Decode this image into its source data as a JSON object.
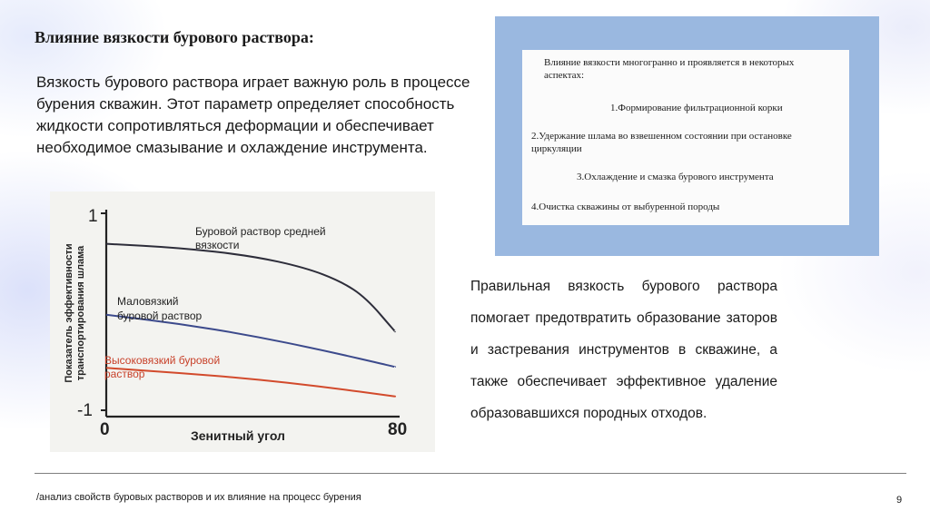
{
  "slide": {
    "title": "Влияние вязкости бурового раствора:",
    "intro": "Вязкость бурового раствора играет важную роль в процессе бурения скважин. Этот параметр определяет способность жидкости сопротивляться деформации и обеспечивает необходимое смазывание и охлаждение инструмента.",
    "paragraph": "Правильная вязкость бурового раствора помогает предотвратить образование заторов и застревания инструментов в скважине, а также обеспечивает эффективное удаление образовавшихся породных отходов.",
    "footer": "/анализ свойств буровых растворов и их влияние на процесс бурения",
    "page_number": "9"
  },
  "aspects": {
    "intro": "Влияние вязкости многогранно и проявляется в некоторых аспектах:",
    "items": [
      "1.Формирование фильтрационной корки",
      "2.Удержание шлама во взвешенном состоянии при остановке циркуляции",
      "3.Охлаждение и смазка бурового инструмента",
      "4.Очистка скважины от выбуренной породы"
    ]
  },
  "colors": {
    "frame": "#9ab8e0",
    "series_dark": "#2d2d3a",
    "series_blue": "#3c4a8c",
    "series_red": "#d24a2c"
  },
  "chart_data": {
    "type": "line",
    "xlabel": "Зенитный угол",
    "ylabel": "Показатель эффективности транспортирования шлама",
    "x_ticks": [
      "0",
      "80"
    ],
    "y_ticks": [
      "1",
      "-1"
    ],
    "xlim": [
      0,
      80
    ],
    "ylim": [
      -1,
      1
    ],
    "series": [
      {
        "name": "Буровой раствор средней вязкости",
        "color": "#2d2d3a",
        "x": [
          0,
          20,
          40,
          55,
          65,
          72,
          80
        ],
        "y": [
          0.69,
          0.65,
          0.57,
          0.45,
          0.31,
          0.14,
          -0.2
        ]
      },
      {
        "name": "Маловязкий буровой раствор",
        "color": "#3c4a8c",
        "x": [
          0,
          20,
          40,
          60,
          80
        ],
        "y": [
          -0.03,
          -0.12,
          -0.24,
          -0.39,
          -0.56
        ]
      },
      {
        "name": "Высоковязкий буровой раствор",
        "color": "#d24a2c",
        "x": [
          0,
          20,
          40,
          60,
          80
        ],
        "y": [
          -0.57,
          -0.62,
          -0.68,
          -0.76,
          -0.86
        ]
      }
    ]
  }
}
